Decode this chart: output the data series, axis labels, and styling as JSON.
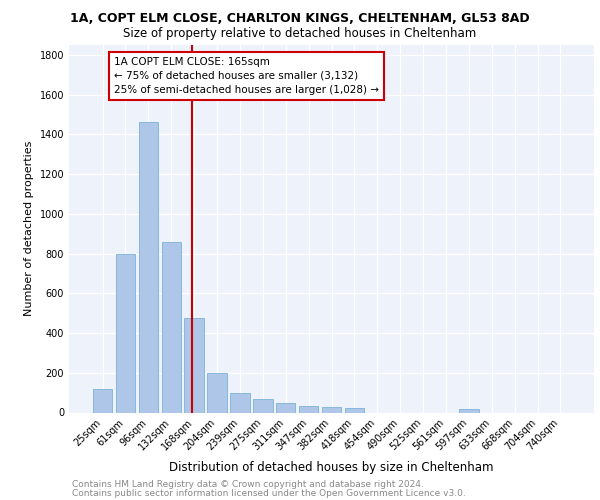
{
  "title1": "1A, COPT ELM CLOSE, CHARLTON KINGS, CHELTENHAM, GL53 8AD",
  "title2": "Size of property relative to detached houses in Cheltenham",
  "xlabel": "Distribution of detached houses by size in Cheltenham",
  "ylabel": "Number of detached properties",
  "categories": [
    "25sqm",
    "61sqm",
    "96sqm",
    "132sqm",
    "168sqm",
    "204sqm",
    "239sqm",
    "275sqm",
    "311sqm",
    "347sqm",
    "382sqm",
    "418sqm",
    "454sqm",
    "490sqm",
    "525sqm",
    "561sqm",
    "597sqm",
    "633sqm",
    "668sqm",
    "704sqm",
    "740sqm"
  ],
  "values": [
    120,
    800,
    1460,
    860,
    475,
    200,
    100,
    70,
    48,
    35,
    28,
    22,
    0,
    0,
    0,
    0,
    18,
    0,
    0,
    0,
    0
  ],
  "bar_color": "#aec6e8",
  "bar_edge_color": "#6aaad4",
  "vline_color": "#cc0000",
  "vline_x_index": 4,
  "annotation_text": "1A COPT ELM CLOSE: 165sqm\n← 75% of detached houses are smaller (3,132)\n25% of semi-detached houses are larger (1,028) →",
  "annotation_box_color": "#ffffff",
  "annotation_box_edge": "#cc0000",
  "ylim": [
    0,
    1850
  ],
  "yticks": [
    0,
    200,
    400,
    600,
    800,
    1000,
    1200,
    1400,
    1600,
    1800
  ],
  "bg_color": "#eef2fa",
  "footer1": "Contains HM Land Registry data © Crown copyright and database right 2024.",
  "footer2": "Contains public sector information licensed under the Open Government Licence v3.0.",
  "title1_fontsize": 9,
  "title2_fontsize": 8.5,
  "xlabel_fontsize": 8.5,
  "ylabel_fontsize": 8,
  "tick_fontsize": 7,
  "annotation_fontsize": 7.5,
  "footer_fontsize": 6.5
}
